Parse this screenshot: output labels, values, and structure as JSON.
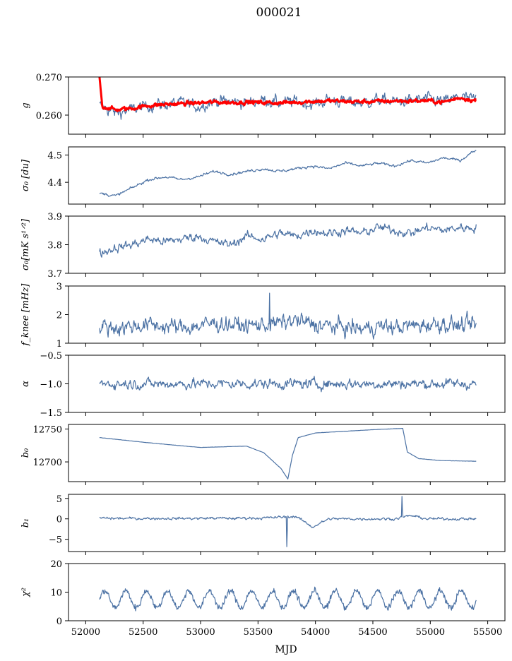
{
  "figure": {
    "title": "000021",
    "xlabel": "MJD"
  },
  "colors": {
    "series": "#4c72a4",
    "model": "#ff0000",
    "axis": "#000000"
  },
  "chart_data": [
    {
      "type": "line",
      "ylabel": "g",
      "xlim": [
        51850,
        55650
      ],
      "ylim": [
        0.255,
        0.27
      ],
      "yticks": [
        0.26,
        0.27
      ],
      "yticklabels": [
        "0.260",
        "0.270"
      ],
      "x_range": [
        52120,
        55400
      ],
      "series": [
        {
          "values_profile": [
            0.2625,
            0.2605,
            0.2615,
            0.2625,
            0.2628,
            0.2632,
            0.2622,
            0.2638,
            0.2635,
            0.2632,
            0.264,
            0.2632,
            0.2636,
            0.2628,
            0.264,
            0.2635,
            0.2632,
            0.264,
            0.2635,
            0.2638,
            0.2642,
            0.2635,
            0.2648,
            0.264
          ],
          "noise": 0.0012,
          "style": "series"
        },
        {
          "values_profile": [
            0.2625,
            0.2614,
            0.2618,
            0.2625,
            0.2628,
            0.263,
            0.2632,
            0.2634,
            0.2633,
            0.2634,
            0.2633,
            0.2632,
            0.2634,
            0.2636,
            0.2637,
            0.2636,
            0.2635,
            0.2636,
            0.2637,
            0.2637,
            0.2638,
            0.2634,
            0.2646,
            0.2638
          ],
          "noise": 0.0004,
          "spike": 0.27,
          "style": "model"
        }
      ]
    },
    {
      "type": "line",
      "ylabel": "σ₀ [du]",
      "xlim": [
        51850,
        55650
      ],
      "ylim": [
        4.32,
        4.53
      ],
      "yticks": [
        4.4,
        4.5
      ],
      "yticklabels": [
        "4.4",
        "4.5"
      ],
      "x_range": [
        52120,
        55400
      ],
      "series": [
        {
          "values_profile": [
            4.36,
            4.35,
            4.38,
            4.41,
            4.42,
            4.41,
            4.42,
            4.44,
            4.43,
            4.44,
            4.45,
            4.44,
            4.45,
            4.46,
            4.45,
            4.47,
            4.46,
            4.47,
            4.46,
            4.48,
            4.47,
            4.49,
            4.48,
            4.52
          ],
          "noise": 0.004,
          "style": "series"
        }
      ]
    },
    {
      "type": "line",
      "ylabel": "σ₀[mK s¹ᐟ²]",
      "xlim": [
        51850,
        55650
      ],
      "ylim": [
        3.7,
        3.9
      ],
      "yticks": [
        3.7,
        3.8,
        3.9
      ],
      "yticklabels": [
        "3.7",
        "3.8",
        "3.9"
      ],
      "x_range": [
        52120,
        55400
      ],
      "series": [
        {
          "values_profile": [
            3.77,
            3.79,
            3.8,
            3.82,
            3.81,
            3.82,
            3.83,
            3.81,
            3.8,
            3.83,
            3.82,
            3.84,
            3.83,
            3.85,
            3.84,
            3.85,
            3.84,
            3.86,
            3.85,
            3.84,
            3.86,
            3.85,
            3.86,
            3.86
          ],
          "noise": 0.012,
          "style": "series"
        }
      ]
    },
    {
      "type": "line",
      "ylabel": "f_knee [mHz]",
      "xlim": [
        51850,
        55650
      ],
      "ylim": [
        1,
        3
      ],
      "yticks": [
        1,
        2,
        3
      ],
      "yticklabels": [
        "1",
        "2",
        "3"
      ],
      "x_range": [
        52120,
        55400
      ],
      "series": [
        {
          "values_profile": [
            1.6,
            1.55,
            1.6,
            1.65,
            1.6,
            1.55,
            1.6,
            1.7,
            1.65,
            1.6,
            1.65,
            1.7,
            1.8,
            1.65,
            1.6,
            1.55,
            1.5,
            1.6,
            1.55,
            1.6,
            1.65,
            1.7,
            1.6,
            1.65
          ],
          "noise": 0.22,
          "spike": 2.75,
          "style": "series"
        }
      ]
    },
    {
      "type": "line",
      "ylabel": "α",
      "xlim": [
        51850,
        55650
      ],
      "ylim": [
        -1.5,
        -0.5
      ],
      "yticks": [
        -1.5,
        -1.0,
        -0.5
      ],
      "yticklabels": [
        "−1.5",
        "−1.0",
        "−0.5"
      ],
      "x_range": [
        52120,
        55400
      ],
      "series": [
        {
          "values_profile": [
            -1.0,
            -1.0,
            -1.0,
            -1.0,
            -1.0,
            -1.0,
            -1.0,
            -1.0,
            -1.0,
            -1.0,
            -1.0,
            -1.0,
            -1.0,
            -1.0,
            -1.0,
            -1.0,
            -1.0,
            -1.0,
            -1.0,
            -1.0,
            -1.0,
            -1.0,
            -1.0,
            -1.0
          ],
          "noise": 0.07,
          "style": "series"
        }
      ]
    },
    {
      "type": "line",
      "ylabel": "b₀",
      "xlim": [
        51850,
        55650
      ],
      "ylim": [
        12670,
        12757
      ],
      "yticks": [
        12700,
        12750
      ],
      "yticklabels": [
        "12700",
        "12750"
      ],
      "x_range": [
        52120,
        55400
      ],
      "points": [
        [
          52120,
          12737
        ],
        [
          52500,
          12730
        ],
        [
          52800,
          12725
        ],
        [
          53000,
          12722
        ],
        [
          53200,
          12723
        ],
        [
          53400,
          12724
        ],
        [
          53550,
          12714
        ],
        [
          53700,
          12690
        ],
        [
          53760,
          12674
        ],
        [
          53800,
          12710
        ],
        [
          53850,
          12737
        ],
        [
          54000,
          12744
        ],
        [
          54300,
          12747
        ],
        [
          54500,
          12749
        ],
        [
          54760,
          12751
        ],
        [
          54800,
          12715
        ],
        [
          54900,
          12705
        ],
        [
          55100,
          12702
        ],
        [
          55400,
          12701
        ]
      ],
      "series": [
        {
          "style": "series"
        }
      ]
    },
    {
      "type": "line",
      "ylabel": "b₁",
      "xlim": [
        51850,
        55650
      ],
      "ylim": [
        -8,
        6
      ],
      "yticks": [
        -5,
        0,
        5
      ],
      "yticklabels": [
        "−5",
        "0",
        "5"
      ],
      "x_range": [
        52120,
        55400
      ],
      "series": [
        {
          "values_profile": [
            0.2,
            0.1,
            0.1,
            0.1,
            0.1,
            0.1,
            0.1,
            0.2,
            0.1,
            0.2,
            0.2,
            0.4,
            0.6,
            -2.0,
            0.0,
            0.0,
            0.0,
            0.0,
            0.0,
            0.8,
            0.0,
            0.0,
            0.0,
            0.0
          ],
          "noise": 0.25,
          "events": [
            [
              53750,
              -6.8
            ],
            [
              54755,
              5.5
            ]
          ],
          "style": "series"
        }
      ]
    },
    {
      "type": "line",
      "ylabel": "χ²",
      "xlim": [
        51850,
        55650
      ],
      "ylim": [
        0,
        20
      ],
      "yticks": [
        0,
        10,
        20
      ],
      "yticklabels": [
        "0",
        "10",
        "20"
      ],
      "xticks": [
        52000,
        52500,
        53000,
        53500,
        54000,
        54500,
        55000,
        55500
      ],
      "xticklabels": [
        "52000",
        "52500",
        "53000",
        "53500",
        "54000",
        "54500",
        "55000",
        "55500"
      ],
      "x_range": [
        52120,
        55400
      ],
      "series": [
        {
          "mean": 7.5,
          "amplitude": 3.0,
          "period_days": 182.6,
          "noise": 1.0,
          "style": "series"
        }
      ]
    }
  ]
}
